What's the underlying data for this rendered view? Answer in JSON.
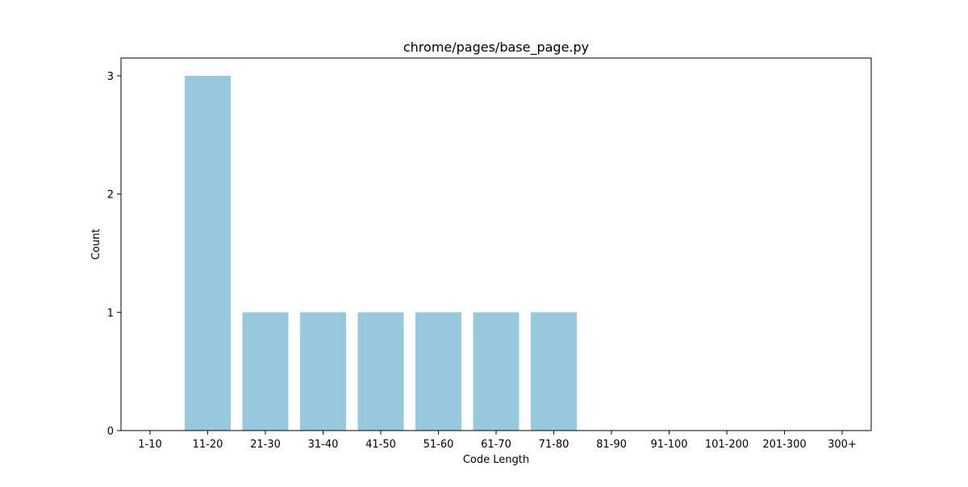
{
  "chart_data": {
    "type": "bar",
    "title": "chrome/pages/base_page.py",
    "xlabel": "Code Length",
    "ylabel": "Count",
    "categories": [
      "1-10",
      "11-20",
      "21-30",
      "31-40",
      "41-50",
      "51-60",
      "61-70",
      "71-80",
      "81-90",
      "91-100",
      "101-200",
      "201-300",
      "300+"
    ],
    "values": [
      0,
      3,
      1,
      1,
      1,
      1,
      1,
      1,
      0,
      0,
      0,
      0,
      0
    ],
    "yticks": [
      "0",
      "1",
      "2",
      "3"
    ],
    "ylim": [
      0,
      3.15
    ],
    "grid": false,
    "legend": "none",
    "bar_color": "#96c9dd"
  }
}
